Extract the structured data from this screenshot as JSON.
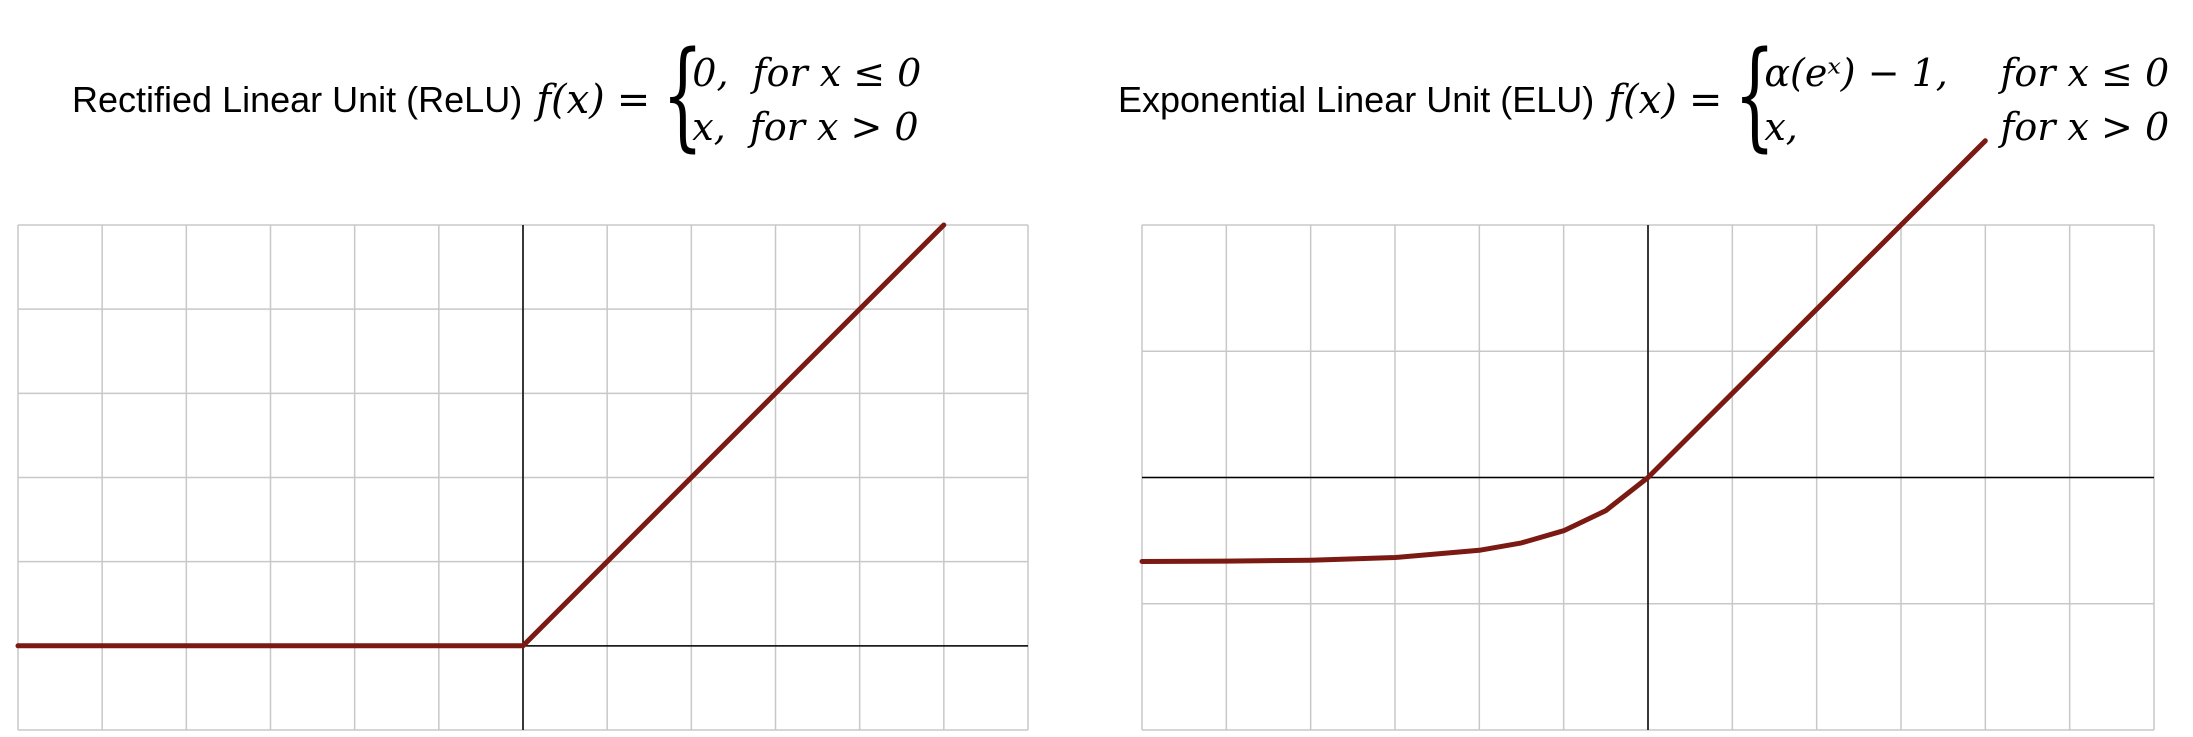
{
  "colors": {
    "curve": "#7b1a12",
    "grid": "#c8c8c8",
    "axis": "#000000",
    "border": "#c8c8c8"
  },
  "relu": {
    "title": "Rectified Linear Unit (ReLU)",
    "fx": "f(x)",
    "eq": "=",
    "case1_expr": "0,",
    "case1_cond": "for x ≤ 0",
    "case2_expr": "x,",
    "case2_cond": "for x > 0"
  },
  "elu": {
    "title": "Exponential Linear Unit (ELU)",
    "fx": "f(x)",
    "eq": "=",
    "case1_expr": "α(eˣ) − 1,",
    "case1_cond": "for x ≤ 0",
    "case2_expr": "x,",
    "case2_cond": "for x > 0"
  },
  "chart_data": [
    {
      "type": "line",
      "title": "Rectified Linear Unit (ReLU)",
      "xlim": [
        -6,
        6
      ],
      "ylim": [
        -1,
        5
      ],
      "grid": true,
      "x_grid_step": 1,
      "y_grid_step": 1,
      "series": [
        {
          "x": [
            -6,
            0,
            5
          ],
          "values": [
            0,
            0,
            5
          ]
        }
      ]
    },
    {
      "type": "line",
      "title": "Exponential Linear Unit (ELU)",
      "xlim": [
        -6,
        6
      ],
      "ylim": [
        -3,
        3
      ],
      "grid": true,
      "x_grid_step": 1,
      "y_grid_step": 1.5,
      "alpha": 1,
      "series": [
        {
          "x": [
            -6,
            -5,
            -4,
            -3,
            -2,
            -1.5,
            -1,
            -0.5,
            0,
            1,
            2,
            3,
            4
          ],
          "values": [
            -0.998,
            -0.993,
            -0.982,
            -0.95,
            -0.865,
            -0.777,
            -0.632,
            -0.393,
            0,
            1,
            2,
            3,
            4
          ]
        }
      ]
    }
  ]
}
